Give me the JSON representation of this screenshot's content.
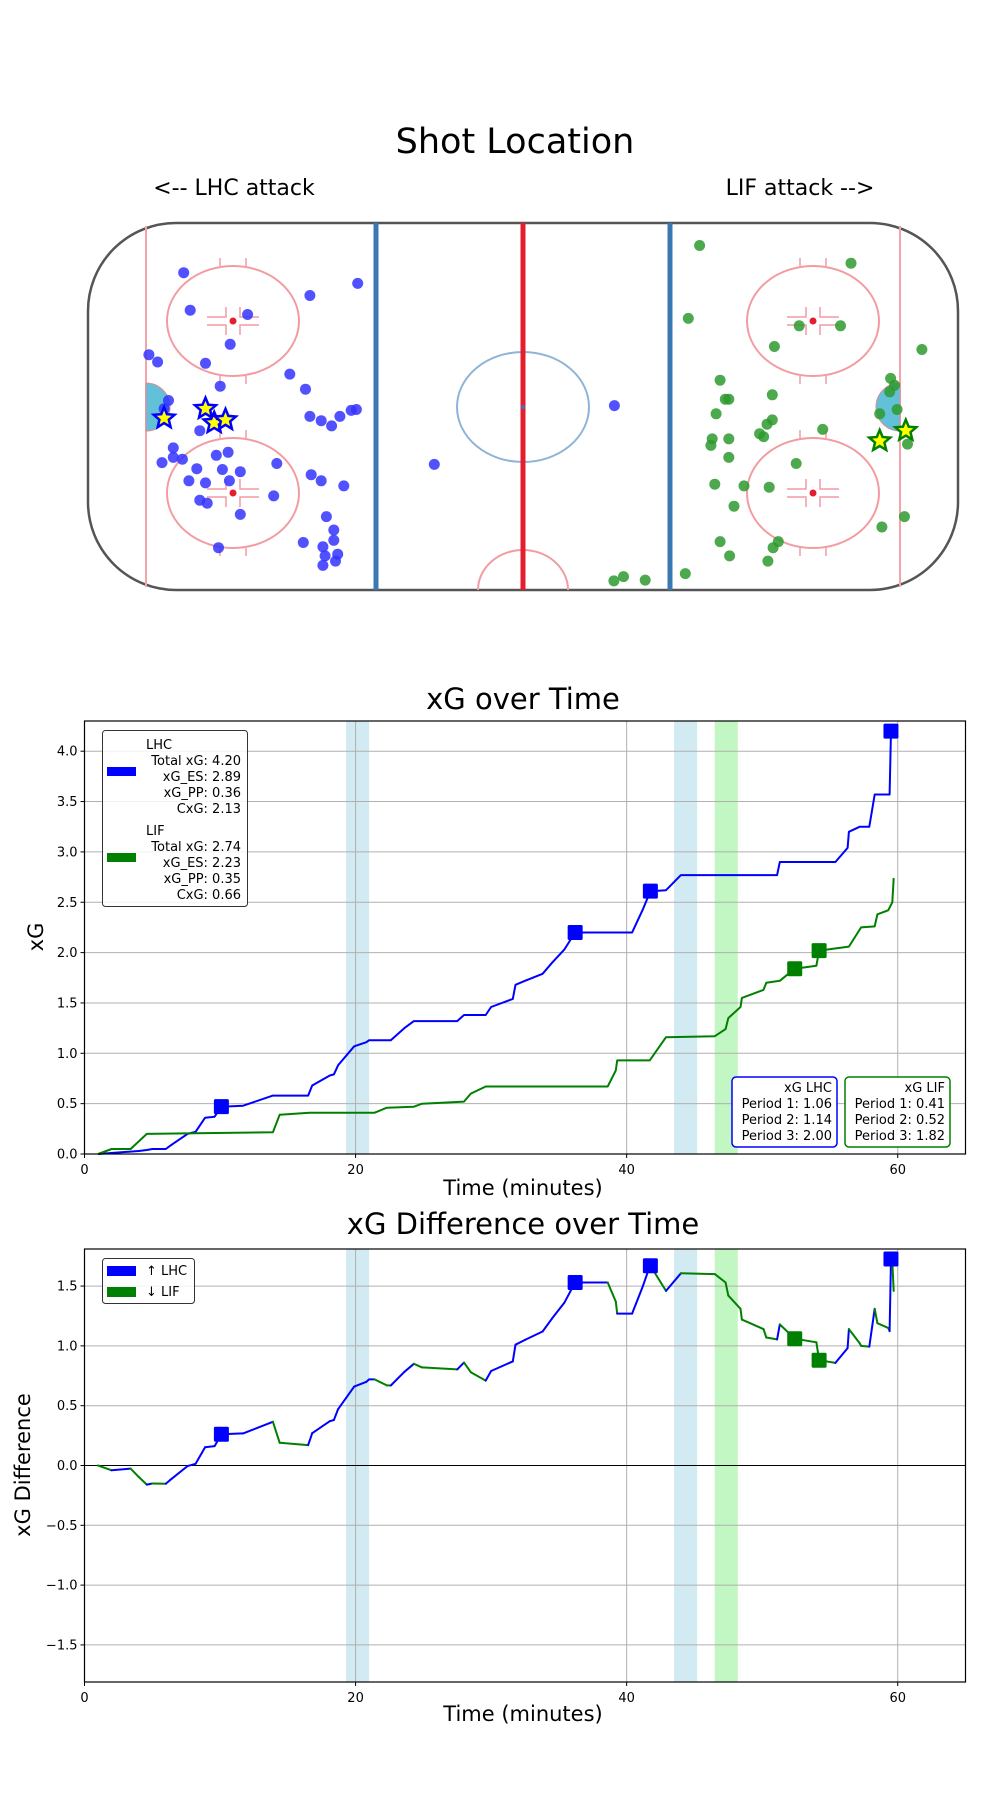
{
  "colors": {
    "lhc": "#0000ff",
    "lif": "#008000",
    "lhc_dot": "#3333ff",
    "lif_dot": "#2e9a2e",
    "star_fill": "#ffff00",
    "pp_band_lhc": "#add8e6",
    "pp_band_lif": "#90ee90",
    "grid": "#b0b0b0"
  },
  "chart_data": [
    {
      "type": "scatter",
      "title": "Shot Location",
      "left_label": "<-- LHC attack",
      "right_label": "LIF attack -->",
      "coordinate_note": "rink units: x from -100 (left end boards) to 100 (right end boards), y from -42.5 (top) to 42.5 (bottom)",
      "series": [
        {
          "name": "LHC shots",
          "marker": "circle",
          "points": [
            [
              -78,
              -31
            ],
            [
              -38,
              -28.5
            ],
            [
              -49,
              -25.7
            ],
            [
              -76.5,
              -22.3
            ],
            [
              -63.3,
              -21.3
            ],
            [
              -67.3,
              -14.4
            ],
            [
              -86,
              -12
            ],
            [
              -84,
              -10.3
            ],
            [
              -73,
              -10
            ],
            [
              -53.6,
              -7.5
            ],
            [
              -69.6,
              -4.7
            ],
            [
              -50,
              -4
            ],
            [
              -81.5,
              -1.4
            ],
            [
              -82.5,
              0.5
            ],
            [
              -49,
              2.3
            ],
            [
              -46.4,
              3.3
            ],
            [
              -44,
              4.5
            ],
            [
              -42.1,
              2.3
            ],
            [
              -39.5,
              0.9
            ],
            [
              -38.3,
              0.7
            ],
            [
              -74.3,
              5.6
            ],
            [
              -80.4,
              9.6
            ],
            [
              -70.5,
              11.3
            ],
            [
              -67.8,
              10.6
            ],
            [
              -83,
              13
            ],
            [
              -80.4,
              11.8
            ],
            [
              -78.3,
              12.2
            ],
            [
              -75,
              14.4
            ],
            [
              -56.6,
              13.2
            ],
            [
              -69.1,
              14.6
            ],
            [
              -65,
              15.1
            ],
            [
              -48.7,
              15.8
            ],
            [
              -76.8,
              17.2
            ],
            [
              -73,
              17.7
            ],
            [
              -67.5,
              17.2
            ],
            [
              -46.4,
              17.2
            ],
            [
              -41.2,
              18.4
            ],
            [
              -57.3,
              20.7
            ],
            [
              -74.3,
              21.7
            ],
            [
              -72.6,
              22.4
            ],
            [
              -65,
              25
            ],
            [
              -45.2,
              25.5
            ],
            [
              -43.5,
              28.6
            ],
            [
              -43.5,
              31
            ],
            [
              -50.5,
              31.5
            ],
            [
              -46,
              32.5
            ],
            [
              -70,
              32.7
            ],
            [
              -45.5,
              34.6
            ],
            [
              -42.6,
              34.2
            ],
            [
              -43.1,
              35.8
            ],
            [
              -46,
              36.8
            ],
            [
              -20.4,
              13.4
            ],
            [
              21,
              -0.2
            ]
          ]
        },
        {
          "name": "LHC goals",
          "marker": "star",
          "points": [
            [
              -82.5,
              2.7
            ],
            [
              -73,
              0.5
            ],
            [
              -71,
              3.8
            ],
            [
              -68.4,
              3.1
            ]
          ]
        },
        {
          "name": "LIF shots",
          "marker": "circle",
          "points": [
            [
              40.6,
              -37.3
            ],
            [
              75.4,
              -33.2
            ],
            [
              38,
              -20.4
            ],
            [
              63.5,
              -18.7
            ],
            [
              73,
              -18.7
            ],
            [
              57.8,
              -13.9
            ],
            [
              91.7,
              -13.2
            ],
            [
              45.3,
              -6.1
            ],
            [
              84.5,
              -6.5
            ],
            [
              85.4,
              -4.9
            ],
            [
              84.3,
              -3.4
            ],
            [
              46.5,
              -1.7
            ],
            [
              47.3,
              -1.7
            ],
            [
              57.3,
              -2.7
            ],
            [
              44.4,
              1.7
            ],
            [
              82,
              1.7
            ],
            [
              86,
              0.7
            ],
            [
              57.3,
              3.1
            ],
            [
              56.1,
              4.1
            ],
            [
              54.4,
              6.3
            ],
            [
              55.3,
              7
            ],
            [
              68.9,
              5.3
            ],
            [
              43.5,
              7.5
            ],
            [
              43.2,
              9
            ],
            [
              47.3,
              7.5
            ],
            [
              47.3,
              11.8
            ],
            [
              88.4,
              8.7
            ],
            [
              62.8,
              13.2
            ],
            [
              44.1,
              18
            ],
            [
              50.8,
              18.4
            ],
            [
              56.6,
              18.7
            ],
            [
              48.5,
              23.1
            ],
            [
              87.7,
              25.5
            ],
            [
              82.5,
              27.9
            ],
            [
              45.3,
              31.3
            ],
            [
              58.7,
              31.3
            ],
            [
              57.5,
              32.7
            ],
            [
              47.5,
              34.6
            ],
            [
              56.3,
              35.8
            ],
            [
              37.3,
              38.7
            ],
            [
              20.9,
              40.4
            ],
            [
              23.1,
              39.4
            ],
            [
              28.1,
              40.2
            ]
          ]
        },
        {
          "name": "LIF goals",
          "marker": "star",
          "points": [
            [
              82,
              8
            ],
            [
              88,
              5.6
            ]
          ]
        }
      ]
    },
    {
      "type": "line",
      "title": "xG over Time",
      "xlabel": "Time (minutes)",
      "ylabel": "xG",
      "xlim": [
        0,
        65
      ],
      "ylim": [
        0,
        4.3
      ],
      "xticks": [
        "0",
        "20",
        "40",
        "60"
      ],
      "yticks": [
        "0.0",
        "0.5",
        "1.0",
        "1.5",
        "2.0",
        "2.5",
        "3.0",
        "3.5",
        "4.0"
      ],
      "grid": true,
      "legend_position": "top-left",
      "powerplay_bands": [
        {
          "team": "LHC",
          "start": 19.3,
          "end": 21.0
        },
        {
          "team": "LHC",
          "start": 43.5,
          "end": 45.2
        },
        {
          "team": "LIF",
          "start": 46.5,
          "end": 48.2
        }
      ],
      "series": [
        {
          "name": "LHC",
          "legend_lines": [
            "LHC",
            "Total xG: 4.20",
            "xG_ES: 2.89",
            "xG_PP: 0.36",
            "CxG: 2.13"
          ],
          "points": [
            [
              1,
              0
            ],
            [
              4,
              0.03
            ],
            [
              4.6,
              0.04
            ],
            [
              5.0,
              0.05
            ],
            [
              6.0,
              0.05
            ],
            [
              6.3,
              0.08
            ],
            [
              7.6,
              0.2
            ],
            [
              8.2,
              0.22
            ],
            [
              8.9,
              0.36
            ],
            [
              9.6,
              0.37
            ],
            [
              10.1,
              0.47
            ],
            [
              11.7,
              0.48
            ],
            [
              13.9,
              0.58
            ],
            [
              16.5,
              0.58
            ],
            [
              16.8,
              0.68
            ],
            [
              18.1,
              0.78
            ],
            [
              18.4,
              0.79
            ],
            [
              18.7,
              0.88
            ],
            [
              19.9,
              1.07
            ],
            [
              20.8,
              1.11
            ],
            [
              21.0,
              1.13
            ],
            [
              22.6,
              1.13
            ],
            [
              23.6,
              1.25
            ],
            [
              24.3,
              1.32
            ],
            [
              27.5,
              1.32
            ],
            [
              28.0,
              1.38
            ],
            [
              29.6,
              1.38
            ],
            [
              30.0,
              1.46
            ],
            [
              31.6,
              1.54
            ],
            [
              31.8,
              1.68
            ],
            [
              32.5,
              1.72
            ],
            [
              33.8,
              1.79
            ],
            [
              34.5,
              1.9
            ],
            [
              35.4,
              2.03
            ],
            [
              36.2,
              2.2
            ],
            [
              40.4,
              2.2
            ],
            [
              41.2,
              2.43
            ],
            [
              41.75,
              2.61
            ],
            [
              42.9,
              2.62
            ],
            [
              44.0,
              2.77
            ],
            [
              51.1,
              2.77
            ],
            [
              51.3,
              2.9
            ],
            [
              55.4,
              2.9
            ],
            [
              56.3,
              3.04
            ],
            [
              56.4,
              3.2
            ],
            [
              57.2,
              3.25
            ],
            [
              57.9,
              3.25
            ],
            [
              58.3,
              3.57
            ],
            [
              59.4,
              3.57
            ],
            [
              59.5,
              4.2
            ]
          ],
          "goals": [
            [
              10.1,
              0.47
            ],
            [
              36.2,
              2.2
            ],
            [
              41.75,
              2.61
            ],
            [
              59.5,
              4.2
            ]
          ]
        },
        {
          "name": "LIF",
          "legend_lines": [
            "LIF",
            "Total xG: 2.74",
            "xG_ES: 2.23",
            "xG_PP: 0.35",
            "CxG: 0.66"
          ],
          "points": [
            [
              1,
              0
            ],
            [
              2.0,
              0.05
            ],
            [
              3.4,
              0.05
            ],
            [
              4.6,
              0.2
            ],
            [
              13.9,
              0.215
            ],
            [
              14.4,
              0.39
            ],
            [
              16.6,
              0.41
            ],
            [
              21.4,
              0.41
            ],
            [
              22.3,
              0.46
            ],
            [
              24.3,
              0.47
            ],
            [
              24.9,
              0.5
            ],
            [
              28.0,
              0.52
            ],
            [
              28.5,
              0.6
            ],
            [
              29.6,
              0.67
            ],
            [
              38.6,
              0.67
            ],
            [
              39.2,
              0.83
            ],
            [
              39.3,
              0.93
            ],
            [
              41.7,
              0.93
            ],
            [
              42.9,
              1.16
            ],
            [
              46.5,
              1.17
            ],
            [
              47.3,
              1.24
            ],
            [
              47.5,
              1.35
            ],
            [
              48.4,
              1.46
            ],
            [
              48.5,
              1.55
            ],
            [
              50.1,
              1.63
            ],
            [
              50.3,
              1.7
            ],
            [
              51.3,
              1.72
            ],
            [
              52.4,
              1.84
            ],
            [
              54.0,
              1.87
            ],
            [
              54.2,
              2.02
            ],
            [
              56.4,
              2.06
            ],
            [
              57.3,
              2.25
            ],
            [
              58.3,
              2.26
            ],
            [
              58.5,
              2.38
            ],
            [
              59.3,
              2.42
            ],
            [
              59.6,
              2.5
            ],
            [
              59.7,
              2.74
            ]
          ],
          "goals": [
            [
              52.4,
              1.84
            ],
            [
              54.2,
              2.02
            ]
          ]
        }
      ],
      "period_boxes": [
        {
          "team": "LHC",
          "lines": [
            "xG LHC",
            "Period 1: 1.06",
            "Period 2: 1.14",
            "Period 3: 2.00"
          ]
        },
        {
          "team": "LIF",
          "lines": [
            "xG LIF",
            "Period 1: 0.41",
            "Period 2: 0.52",
            "Period 3: 1.82"
          ]
        }
      ]
    },
    {
      "type": "line",
      "title": "xG Difference over Time",
      "xlabel": "Time (minutes)",
      "ylabel": "xG Difference",
      "xlim": [
        0,
        65
      ],
      "ylim": [
        -1.81,
        1.81
      ],
      "xticks": [
        "0",
        "20",
        "40",
        "60"
      ],
      "yticks": [
        "−1.5",
        "−1.0",
        "−0.5",
        "0.0",
        "0.5",
        "1.0",
        "1.5"
      ],
      "grid": true,
      "legend_position": "top-left",
      "legend": [
        "↑ LHC",
        "↓ LIF"
      ],
      "derived_from": "LHC xG minus LIF xG; segments colored by which team increased the difference"
    }
  ]
}
